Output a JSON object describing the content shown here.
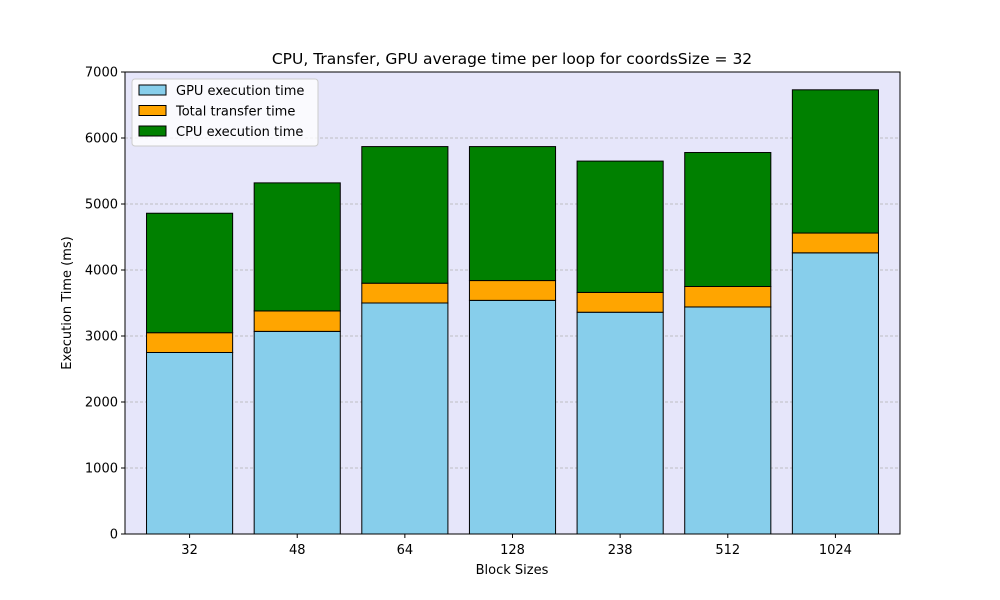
{
  "chart_data": {
    "type": "bar",
    "stacked": true,
    "title": "CPU, Transfer, GPU average time per loop for coordsSize = 32",
    "xlabel": "Block Sizes",
    "ylabel": "Execution Time (ms)",
    "categories": [
      "32",
      "48",
      "64",
      "128",
      "238",
      "512",
      "1024"
    ],
    "ylim": [
      0,
      7000
    ],
    "yticks": [
      0,
      1000,
      2000,
      3000,
      4000,
      5000,
      6000,
      7000
    ],
    "grid": "horizontal dashed",
    "background": "#e6e6fa",
    "legend_position": "top-left",
    "series": [
      {
        "name": "GPU execution time",
        "color": "#87ceeb",
        "values": [
          2750,
          3070,
          3500,
          3540,
          3360,
          3440,
          4260
        ]
      },
      {
        "name": "Total transfer time",
        "color": "#ffa500",
        "values": [
          300,
          310,
          300,
          300,
          300,
          310,
          300
        ]
      },
      {
        "name": "CPU execution time",
        "color": "#008000",
        "values": [
          1810,
          1940,
          2070,
          2030,
          1990,
          2030,
          2170
        ]
      }
    ]
  }
}
